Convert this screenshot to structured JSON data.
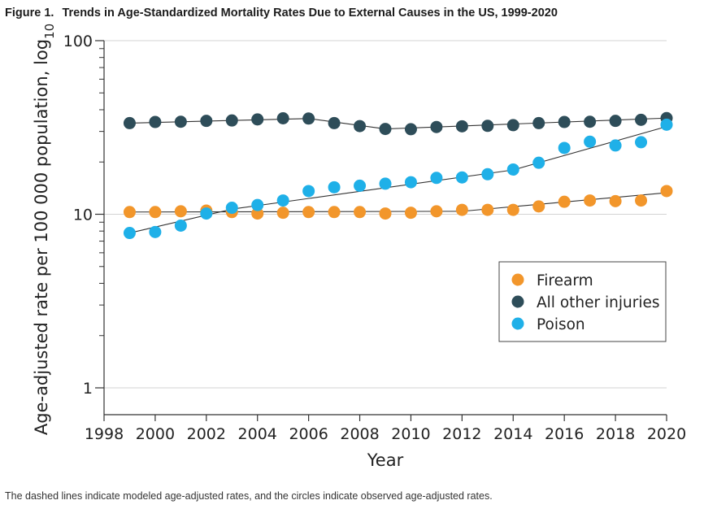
{
  "figure": {
    "label": "Figure 1.",
    "title": "Trends in Age-Standardized Mortality Rates Due to External Causes in the US, 1999-2020",
    "caption": "The dashed lines indicate modeled age-adjusted rates, and the circles indicate observed age-adjusted rates."
  },
  "chart_data": {
    "type": "scatter",
    "title": "Trends in Age-Standardized Mortality Rates Due to External Causes in the US, 1999-2020",
    "xlabel": "Year",
    "ylabel_main": "Age-adjusted rate per 100 000 population, log",
    "ylabel_sub": "10",
    "yscale": "log10",
    "xlim": [
      1998,
      2020
    ],
    "ylim": [
      0.6,
      100
    ],
    "xticks": [
      1998,
      2000,
      2002,
      2004,
      2006,
      2008,
      2010,
      2012,
      2014,
      2016,
      2018,
      2020
    ],
    "xtick_labels": [
      "1998",
      "2000",
      "2002",
      "2004",
      "2006",
      "2008",
      "2010",
      "2012",
      "2014",
      "2016",
      "2018",
      "2020"
    ],
    "yticks": [
      1,
      10,
      100
    ],
    "ytick_labels": [
      "1",
      "10",
      "100"
    ],
    "yminor_ticks": [
      2,
      3,
      4,
      5,
      6,
      7,
      8,
      9,
      20,
      30,
      40,
      50,
      60,
      70,
      80,
      90
    ],
    "legend_position": "lower-right",
    "x": [
      1999,
      2000,
      2001,
      2002,
      2003,
      2004,
      2005,
      2006,
      2007,
      2008,
      2009,
      2010,
      2011,
      2012,
      2013,
      2014,
      2015,
      2016,
      2017,
      2018,
      2019,
      2020
    ],
    "series": [
      {
        "name": "Firearm",
        "color": "#f2962b",
        "values": [
          10.3,
          10.3,
          10.4,
          10.5,
          10.3,
          10.1,
          10.2,
          10.3,
          10.3,
          10.3,
          10.1,
          10.2,
          10.4,
          10.6,
          10.6,
          10.6,
          11.1,
          11.8,
          12.0,
          11.9,
          12.0,
          13.6
        ],
        "model_segments": [
          {
            "from": [
              1999,
              10.3
            ],
            "to": [
              2012,
              10.4
            ]
          },
          {
            "from": [
              2012,
              10.4
            ],
            "to": [
              2020,
              13.3
            ]
          }
        ]
      },
      {
        "name": "All other injuries",
        "color": "#2e4d59",
        "values": [
          33.5,
          34.0,
          34.1,
          34.5,
          34.7,
          35.2,
          35.7,
          35.6,
          33.5,
          32.2,
          31.0,
          30.9,
          31.8,
          32.1,
          32.3,
          32.6,
          33.5,
          34.0,
          34.1,
          34.5,
          35.0,
          35.8
        ],
        "model_segments": [
          {
            "from": [
              1999,
              33.5
            ],
            "to": [
              2006,
              35.6
            ]
          },
          {
            "from": [
              2006,
              35.6
            ],
            "to": [
              2009,
              31.0
            ]
          },
          {
            "from": [
              2009,
              31.0
            ],
            "to": [
              2020,
              35.8
            ]
          }
        ]
      },
      {
        "name": "Poison",
        "color": "#1fb0e8",
        "values": [
          7.8,
          7.9,
          8.6,
          10.1,
          10.9,
          11.3,
          12.0,
          13.6,
          14.3,
          14.6,
          15.0,
          15.3,
          16.2,
          16.3,
          17.0,
          18.1,
          19.8,
          24.1,
          26.2,
          24.9,
          26.0,
          32.8
        ],
        "model_segments": [
          {
            "from": [
              1999,
              7.8
            ],
            "to": [
              2003,
              10.7
            ]
          },
          {
            "from": [
              2003,
              10.7
            ],
            "to": [
              2014,
              18.0
            ]
          },
          {
            "from": [
              2014,
              18.0
            ],
            "to": [
              2020,
              32.0
            ]
          }
        ]
      }
    ]
  }
}
